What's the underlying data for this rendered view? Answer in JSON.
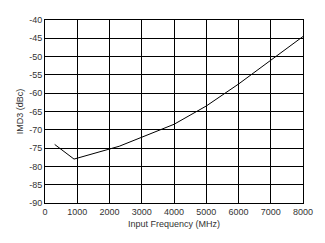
{
  "chart_data": {
    "type": "line",
    "x_label": "Input Frequency (MHz)",
    "y_label": "IMD3 (dBc)",
    "x": [
      300,
      900,
      2300,
      3000,
      4000,
      5000,
      6000,
      7000,
      8000
    ],
    "values": [
      -74,
      -78,
      -74.5,
      -72,
      -68.5,
      -63.5,
      -57.5,
      -51,
      -44.5
    ],
    "color": "#000000",
    "xlim": [
      0,
      8000
    ],
    "xticks": [
      0,
      1000,
      2000,
      3000,
      4000,
      5000,
      6000,
      7000,
      8000
    ],
    "ylim": [
      -90,
      -40
    ],
    "yticks": [
      -90,
      -85,
      -80,
      -75,
      -70,
      -65,
      -60,
      -55,
      -50,
      -45,
      -40
    ],
    "grid": true
  }
}
